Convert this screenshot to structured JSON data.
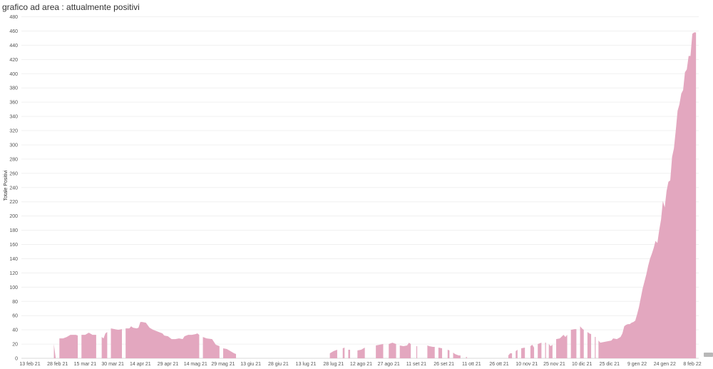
{
  "chart_data": {
    "type": "area",
    "title": "grafico ad area : attualmente positivi",
    "ylabel": "Totale Positivi",
    "xlabel": "",
    "ylim": [
      0,
      480
    ],
    "y_ticks": [
      0,
      20,
      40,
      60,
      80,
      100,
      120,
      140,
      160,
      180,
      200,
      220,
      240,
      260,
      280,
      300,
      320,
      340,
      360,
      380,
      400,
      420,
      440,
      460,
      480
    ],
    "x_ticks": [
      {
        "label": "13 feb 21",
        "date": "2021-02-13"
      },
      {
        "label": "28 feb 21",
        "date": "2021-02-28"
      },
      {
        "label": "15 mar 21",
        "date": "2021-03-15"
      },
      {
        "label": "30 mar 21",
        "date": "2021-03-30"
      },
      {
        "label": "14 apr 21",
        "date": "2021-04-14"
      },
      {
        "label": "29 apr 21",
        "date": "2021-04-29"
      },
      {
        "label": "14 mag 21",
        "date": "2021-05-14"
      },
      {
        "label": "29 mag 21",
        "date": "2021-05-29"
      },
      {
        "label": "13 giu 21",
        "date": "2021-06-13"
      },
      {
        "label": "28 giu 21",
        "date": "2021-06-28"
      },
      {
        "label": "13 lug 21",
        "date": "2021-07-13"
      },
      {
        "label": "28 lug 21",
        "date": "2021-07-28"
      },
      {
        "label": "12 ago 21",
        "date": "2021-08-12"
      },
      {
        "label": "27 ago 21",
        "date": "2021-08-27"
      },
      {
        "label": "11 set 21",
        "date": "2021-09-11"
      },
      {
        "label": "26 set 21",
        "date": "2021-09-26"
      },
      {
        "label": "11 ott 21",
        "date": "2021-10-11"
      },
      {
        "label": "26 ott 21",
        "date": "2021-10-26"
      },
      {
        "label": "10 nov 21",
        "date": "2021-11-10"
      },
      {
        "label": "25 nov 21",
        "date": "2021-11-25"
      },
      {
        "label": "10 dic 21",
        "date": "2021-12-10"
      },
      {
        "label": "25 dic 21",
        "date": "2021-12-25"
      },
      {
        "label": "9 gen 22",
        "date": "2022-01-09"
      },
      {
        "label": "24 gen 22",
        "date": "2022-01-24"
      },
      {
        "label": "8 feb 22",
        "date": "2022-02-08"
      }
    ],
    "xlim": [
      "2021-02-13",
      "2022-02-08"
    ],
    "grid": true,
    "color": "#e3a7bf",
    "segments": [
      [
        [
          "2021-02-26",
          0
        ],
        [
          "2021-02-26",
          20
        ],
        [
          "2021-02-27",
          0
        ]
      ],
      [
        [
          "2021-03-01",
          28
        ],
        [
          "2021-03-03",
          28
        ],
        [
          "2021-03-05",
          30
        ],
        [
          "2021-03-07",
          33
        ],
        [
          "2021-03-10",
          33
        ],
        [
          "2021-03-11",
          32
        ]
      ],
      [
        [
          "2021-03-13",
          33
        ],
        [
          "2021-03-15",
          33
        ],
        [
          "2021-03-17",
          36
        ],
        [
          "2021-03-19",
          33
        ],
        [
          "2021-03-21",
          33
        ]
      ],
      [
        [
          "2021-03-24",
          30
        ],
        [
          "2021-03-25",
          28
        ],
        [
          "2021-03-26",
          35
        ],
        [
          "2021-03-27",
          37
        ]
      ],
      [
        [
          "2021-03-29",
          42
        ],
        [
          "2021-03-31",
          41
        ],
        [
          "2021-04-02",
          40
        ],
        [
          "2021-04-04",
          41
        ]
      ],
      [
        [
          "2021-04-06",
          42
        ],
        [
          "2021-04-08",
          42
        ],
        [
          "2021-04-09",
          45
        ],
        [
          "2021-04-10",
          43
        ],
        [
          "2021-04-12",
          42
        ],
        [
          "2021-04-13",
          43
        ],
        [
          "2021-04-14",
          51
        ],
        [
          "2021-04-15",
          51
        ],
        [
          "2021-04-17",
          50
        ],
        [
          "2021-04-19",
          43
        ],
        [
          "2021-04-21",
          40
        ],
        [
          "2021-04-23",
          38
        ],
        [
          "2021-04-25",
          36
        ],
        [
          "2021-04-26",
          35
        ],
        [
          "2021-04-27",
          32
        ],
        [
          "2021-04-29",
          31
        ],
        [
          "2021-05-01",
          27
        ],
        [
          "2021-05-03",
          27
        ],
        [
          "2021-05-05",
          28
        ],
        [
          "2021-05-07",
          27
        ],
        [
          "2021-05-08",
          31
        ],
        [
          "2021-05-10",
          33
        ],
        [
          "2021-05-12",
          33
        ],
        [
          "2021-05-14",
          34
        ],
        [
          "2021-05-15",
          35
        ],
        [
          "2021-05-16",
          33
        ]
      ],
      [
        [
          "2021-05-18",
          30
        ],
        [
          "2021-05-20",
          28
        ],
        [
          "2021-05-23",
          27
        ],
        [
          "2021-05-25",
          19
        ],
        [
          "2021-05-27",
          17
        ]
      ],
      [
        [
          "2021-05-29",
          14
        ],
        [
          "2021-05-31",
          13
        ],
        [
          "2021-06-02",
          10
        ],
        [
          "2021-06-04",
          7
        ],
        [
          "2021-06-05",
          6
        ]
      ],
      [
        [
          "2021-07-26",
          7
        ],
        [
          "2021-07-28",
          10
        ],
        [
          "2021-07-30",
          12
        ]
      ],
      [
        [
          "2021-08-02",
          14
        ],
        [
          "2021-08-03",
          15
        ]
      ],
      [
        [
          "2021-08-05",
          12
        ],
        [
          "2021-08-06",
          12
        ]
      ],
      [
        [
          "2021-08-10",
          11
        ],
        [
          "2021-08-12",
          12
        ],
        [
          "2021-08-14",
          15
        ]
      ],
      [
        [
          "2021-08-20",
          18
        ],
        [
          "2021-08-22",
          19
        ],
        [
          "2021-08-24",
          20
        ]
      ],
      [
        [
          "2021-08-27",
          20
        ],
        [
          "2021-08-29",
          22
        ],
        [
          "2021-08-31",
          20
        ]
      ],
      [
        [
          "2021-09-02",
          18
        ],
        [
          "2021-09-04",
          17
        ],
        [
          "2021-09-06",
          18
        ],
        [
          "2021-09-07",
          22
        ],
        [
          "2021-09-08",
          20
        ]
      ],
      [
        [
          "2021-09-11",
          17
        ],
        [
          "2021-09-11",
          17
        ]
      ],
      [
        [
          "2021-09-17",
          18
        ],
        [
          "2021-09-18",
          17
        ],
        [
          "2021-09-20",
          16
        ],
        [
          "2021-09-21",
          16
        ]
      ],
      [
        [
          "2021-09-23",
          15
        ],
        [
          "2021-09-25",
          14
        ]
      ],
      [
        [
          "2021-09-28",
          12
        ],
        [
          "2021-09-29",
          11
        ]
      ],
      [
        [
          "2021-10-01",
          8
        ],
        [
          "2021-10-02",
          6
        ],
        [
          "2021-10-04",
          4
        ],
        [
          "2021-10-05",
          4
        ]
      ],
      [
        [
          "2021-10-08",
          2
        ],
        [
          "2021-10-08",
          2
        ]
      ],
      [
        [
          "2021-10-31",
          4
        ],
        [
          "2021-11-01",
          7
        ],
        [
          "2021-11-02",
          7
        ]
      ],
      [
        [
          "2021-11-04",
          10
        ],
        [
          "2021-11-05",
          12
        ]
      ],
      [
        [
          "2021-11-07",
          14
        ],
        [
          "2021-11-09",
          15
        ]
      ],
      [
        [
          "2021-11-12",
          17
        ],
        [
          "2021-11-13",
          19
        ],
        [
          "2021-11-14",
          15
        ]
      ],
      [
        [
          "2021-11-16",
          20
        ],
        [
          "2021-11-18",
          22
        ]
      ],
      [
        [
          "2021-11-20",
          22
        ],
        [
          "2021-11-20",
          22
        ]
      ],
      [
        [
          "2021-11-22",
          20
        ],
        [
          "2021-11-23",
          17
        ],
        [
          "2021-11-24",
          19
        ]
      ],
      [
        [
          "2021-11-26",
          27
        ],
        [
          "2021-11-28",
          28
        ],
        [
          "2021-11-30",
          33
        ],
        [
          "2021-12-01",
          30
        ],
        [
          "2021-12-02",
          33
        ]
      ],
      [
        [
          "2021-12-04",
          40
        ],
        [
          "2021-12-06",
          41
        ],
        [
          "2021-12-07",
          41
        ]
      ],
      [
        [
          "2021-12-09",
          45
        ],
        [
          "2021-12-10",
          42
        ],
        [
          "2021-12-11",
          40
        ]
      ],
      [
        [
          "2021-12-13",
          37
        ],
        [
          "2021-12-14",
          35
        ],
        [
          "2021-12-15",
          34
        ]
      ],
      [
        [
          "2021-12-17",
          30
        ],
        [
          "2021-12-17",
          30
        ]
      ],
      [
        [
          "2021-12-19",
          25
        ],
        [
          "2021-12-20",
          22
        ],
        [
          "2021-12-22",
          23
        ],
        [
          "2021-12-24",
          24
        ],
        [
          "2021-12-26",
          25
        ],
        [
          "2021-12-27",
          28
        ],
        [
          "2021-12-29",
          27
        ],
        [
          "2021-12-31",
          30
        ],
        [
          "2022-01-01",
          35
        ],
        [
          "2022-01-02",
          45
        ],
        [
          "2022-01-03",
          47
        ],
        [
          "2022-01-04",
          48
        ],
        [
          "2022-01-05",
          48
        ],
        [
          "2022-01-06",
          50
        ],
        [
          "2022-01-07",
          51
        ],
        [
          "2022-01-08",
          53
        ],
        [
          "2022-01-09",
          62
        ],
        [
          "2022-01-10",
          72
        ],
        [
          "2022-01-11",
          85
        ],
        [
          "2022-01-12",
          98
        ],
        [
          "2022-01-13",
          108
        ],
        [
          "2022-01-14",
          118
        ],
        [
          "2022-01-15",
          130
        ],
        [
          "2022-01-16",
          140
        ],
        [
          "2022-01-17",
          147
        ],
        [
          "2022-01-18",
          155
        ],
        [
          "2022-01-19",
          165
        ],
        [
          "2022-01-20",
          162
        ],
        [
          "2022-01-21",
          180
        ],
        [
          "2022-01-22",
          195
        ],
        [
          "2022-01-23",
          221
        ],
        [
          "2022-01-24",
          212
        ],
        [
          "2022-01-25",
          235
        ],
        [
          "2022-01-26",
          248
        ],
        [
          "2022-01-27",
          250
        ],
        [
          "2022-01-28",
          283
        ],
        [
          "2022-01-29",
          295
        ],
        [
          "2022-01-30",
          320
        ],
        [
          "2022-01-31",
          348
        ],
        [
          "2022-02-01",
          357
        ],
        [
          "2022-02-02",
          372
        ],
        [
          "2022-02-03",
          377
        ],
        [
          "2022-02-04",
          402
        ],
        [
          "2022-02-05",
          406
        ],
        [
          "2022-02-06",
          425
        ],
        [
          "2022-02-07",
          425
        ],
        [
          "2022-02-08",
          456
        ],
        [
          "2022-02-09",
          458
        ],
        [
          "2022-02-10",
          458
        ]
      ]
    ]
  }
}
